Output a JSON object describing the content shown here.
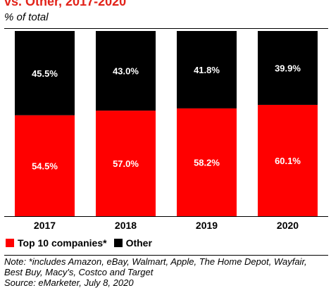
{
  "title": "vs. Other, 2017-2020",
  "subtitle": "% of total",
  "colors": {
    "top10": "#ff0000",
    "other": "#000000",
    "label": "#ffffff"
  },
  "chart_data": {
    "type": "bar",
    "stacked": true,
    "categories": [
      "2017",
      "2018",
      "2019",
      "2020"
    ],
    "series": [
      {
        "name": "Top 10 companies*",
        "values": [
          54.5,
          57.0,
          58.2,
          60.1
        ],
        "labels": [
          "54.5%",
          "57.0%",
          "58.2%",
          "60.1%"
        ]
      },
      {
        "name": "Other",
        "values": [
          45.5,
          43.0,
          41.8,
          39.9
        ],
        "labels": [
          "45.5%",
          "43.0%",
          "41.8%",
          "39.9%"
        ]
      }
    ],
    "ylim": [
      0,
      100
    ],
    "grid": false,
    "legend_position": "bottom-left"
  },
  "note_lines": [
    "Note: *includes Amazon, eBay, Walmart, Apple, The Home Depot, Wayfair,",
    "Best Buy, Macy's, Costco and Target",
    "Source: eMarketer, July 8, 2020"
  ]
}
